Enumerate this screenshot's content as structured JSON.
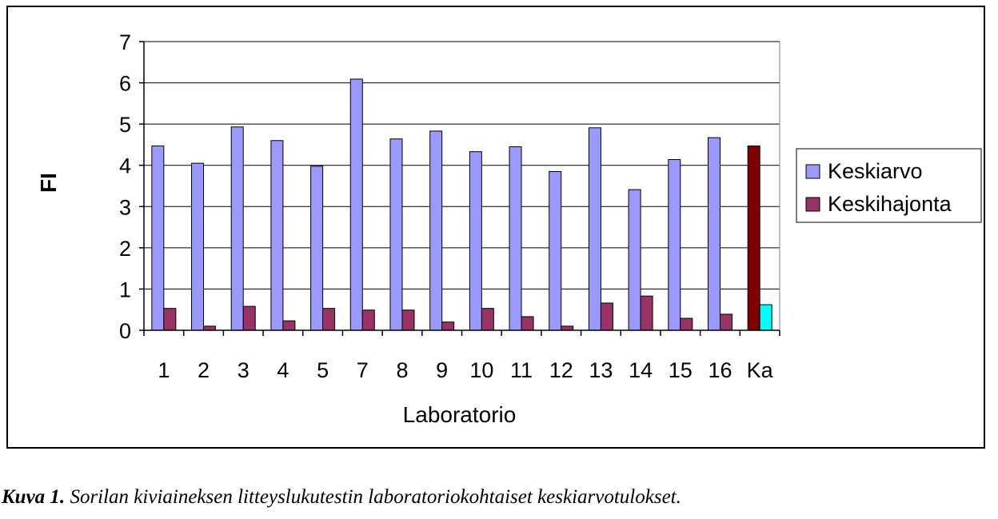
{
  "caption": {
    "label": "Kuva 1.",
    "text": " Sorilan kiviaineksen litteyslukutestin laboratoriokohtaiset keskiarvotulokset."
  },
  "colors": {
    "keskiarvo": "#9999ff",
    "keskihajonta": "#993366",
    "ka_keskiarvo": "#800000",
    "ka_keskihajonta": "#00ffff",
    "grid": "#000000"
  },
  "chart_data": {
    "type": "bar",
    "title": "",
    "xlabel": "Laboratorio",
    "ylabel": "FI",
    "ylim": [
      0,
      7
    ],
    "yticks": [
      "0",
      "1",
      "2",
      "3",
      "4",
      "5",
      "6",
      "7"
    ],
    "grid": true,
    "legend_position": "right",
    "categories": [
      "1",
      "2",
      "3",
      "4",
      "5",
      "7",
      "8",
      "9",
      "10",
      "11",
      "12",
      "13",
      "14",
      "15",
      "16",
      "Ka"
    ],
    "series": [
      {
        "name": "Keskiarvo",
        "values": [
          4.47,
          4.05,
          4.93,
          4.6,
          3.98,
          6.09,
          4.64,
          4.83,
          4.33,
          4.45,
          3.85,
          4.91,
          3.41,
          4.14,
          4.67,
          4.47
        ]
      },
      {
        "name": "Keskihajonta",
        "values": [
          0.53,
          0.1,
          0.58,
          0.23,
          0.53,
          0.49,
          0.49,
          0.2,
          0.53,
          0.33,
          0.1,
          0.66,
          0.83,
          0.29,
          0.39,
          0.62
        ]
      }
    ]
  }
}
